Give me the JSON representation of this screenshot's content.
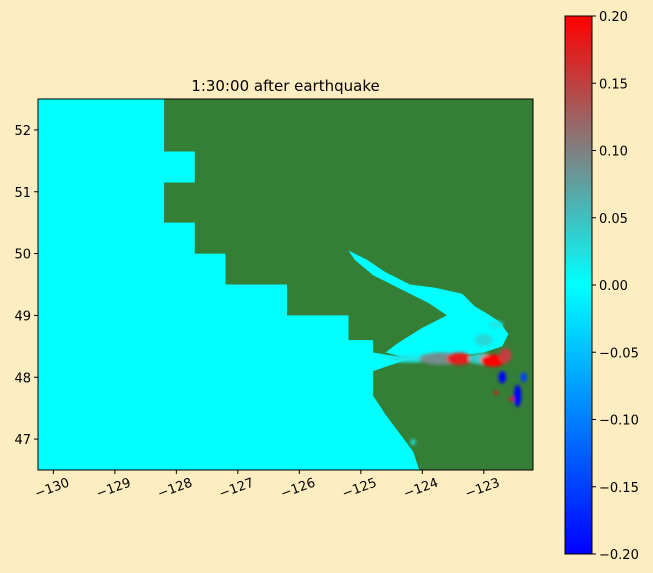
{
  "chart_data": {
    "type": "heatmap",
    "title": "1:30:00 after earthquake",
    "xlim": [
      -130.25,
      -122.2
    ],
    "ylim": [
      46.5,
      52.5
    ],
    "x_ticks": [
      {
        "value": -130,
        "label": "−130"
      },
      {
        "value": -129,
        "label": "−129"
      },
      {
        "value": -128,
        "label": "−128"
      },
      {
        "value": -127,
        "label": "−127"
      },
      {
        "value": -126,
        "label": "−126"
      },
      {
        "value": -125,
        "label": "−125"
      },
      {
        "value": -124,
        "label": "−124"
      },
      {
        "value": -123,
        "label": "−123"
      }
    ],
    "y_ticks": [
      {
        "value": 47,
        "label": "47"
      },
      {
        "value": 48,
        "label": "48"
      },
      {
        "value": 49,
        "label": "49"
      },
      {
        "value": 50,
        "label": "50"
      },
      {
        "value": 51,
        "label": "51"
      },
      {
        "value": 52,
        "label": "52"
      }
    ],
    "colorbar": {
      "min": -0.2,
      "max": 0.2,
      "stops": [
        {
          "value": -0.2,
          "color": "#0000ff"
        },
        {
          "value": 0.0,
          "color": "#00ffff"
        },
        {
          "value": 0.1,
          "color": "#808080"
        },
        {
          "value": 0.2,
          "color": "#ff0000"
        }
      ],
      "ticks": [
        {
          "value": 0.2,
          "label": "0.20"
        },
        {
          "value": 0.15,
          "label": "0.15"
        },
        {
          "value": 0.1,
          "label": "0.10"
        },
        {
          "value": 0.05,
          "label": "0.05"
        },
        {
          "value": 0.0,
          "label": "0.00"
        },
        {
          "value": -0.05,
          "label": "−0.05"
        },
        {
          "value": -0.1,
          "label": "−0.10"
        },
        {
          "value": -0.15,
          "label": "−0.15"
        },
        {
          "value": -0.2,
          "label": "−0.20"
        }
      ]
    },
    "colors": {
      "land": "#357e35",
      "water_zero": "#00ffff",
      "shoreline_vegetation": "#8aa61f",
      "figure_background": "#feedc0"
    },
    "coastline": [
      [
        -128.2,
        52.5
      ],
      [
        -128.2,
        51.65
      ],
      [
        -127.7,
        51.65
      ],
      [
        -127.7,
        51.15
      ],
      [
        -128.2,
        51.15
      ],
      [
        -128.2,
        50.5
      ],
      [
        -127.7,
        50.5
      ],
      [
        -127.7,
        50.0
      ],
      [
        -127.2,
        50.0
      ],
      [
        -127.2,
        49.5
      ],
      [
        -126.2,
        49.5
      ],
      [
        -126.2,
        49.0
      ],
      [
        -125.2,
        49.0
      ],
      [
        -125.2,
        48.6
      ],
      [
        -124.8,
        48.6
      ],
      [
        -124.8,
        48.4
      ],
      [
        -124.5,
        48.35
      ],
      [
        -124.2,
        48.3
      ],
      [
        -124.8,
        48.1
      ],
      [
        -124.8,
        47.7
      ],
      [
        -124.6,
        47.4
      ],
      [
        -124.3,
        47.0
      ],
      [
        -124.15,
        46.8
      ],
      [
        -124.05,
        46.5
      ]
    ],
    "strait_water": [
      [
        -125.2,
        50.05
      ],
      [
        -124.9,
        49.9
      ],
      [
        -124.6,
        49.7
      ],
      [
        -124.2,
        49.5
      ],
      [
        -123.8,
        49.45
      ],
      [
        -123.35,
        49.35
      ],
      [
        -123.15,
        49.15
      ],
      [
        -122.9,
        49.0
      ],
      [
        -122.75,
        48.9
      ],
      [
        -122.6,
        48.7
      ],
      [
        -122.7,
        48.5
      ],
      [
        -123.0,
        48.4
      ],
      [
        -123.4,
        48.35
      ],
      [
        -123.7,
        48.25
      ],
      [
        -124.2,
        48.3
      ],
      [
        -124.6,
        48.4
      ],
      [
        -124.4,
        48.55
      ],
      [
        -124.0,
        48.8
      ],
      [
        -123.6,
        49.0
      ],
      [
        -123.9,
        49.2
      ],
      [
        -124.4,
        49.45
      ],
      [
        -124.8,
        49.65
      ],
      [
        -125.1,
        49.9
      ]
    ],
    "anomalies": [
      {
        "lon": -124.2,
        "lat": 48.3,
        "value": 0.02,
        "rx": 0.35,
        "ry": 0.06
      },
      {
        "lon": -123.7,
        "lat": 48.3,
        "value": 0.09,
        "rx": 0.35,
        "ry": 0.1
      },
      {
        "lon": -123.4,
        "lat": 48.3,
        "value": 0.18,
        "rx": 0.2,
        "ry": 0.1
      },
      {
        "lon": -123.05,
        "lat": 48.3,
        "value": 0.04,
        "rx": 0.2,
        "ry": 0.09
      },
      {
        "lon": -122.85,
        "lat": 48.27,
        "value": 0.2,
        "rx": 0.2,
        "ry": 0.1
      },
      {
        "lon": -122.65,
        "lat": 48.35,
        "value": 0.15,
        "rx": 0.1,
        "ry": 0.12
      },
      {
        "lon": -122.7,
        "lat": 48.0,
        "value": -0.2,
        "rx": 0.06,
        "ry": 0.1
      },
      {
        "lon": -122.45,
        "lat": 47.7,
        "value": -0.2,
        "rx": 0.06,
        "ry": 0.18
      },
      {
        "lon": -122.35,
        "lat": 48.0,
        "value": -0.15,
        "rx": 0.05,
        "ry": 0.08
      },
      {
        "lon": -122.55,
        "lat": 47.65,
        "value": 0.2,
        "rx": 0.04,
        "ry": 0.03
      },
      {
        "lon": -122.8,
        "lat": 47.75,
        "value": 0.2,
        "rx": 0.03,
        "ry": 0.03
      },
      {
        "lon": -123.0,
        "lat": 48.6,
        "value": 0.03,
        "rx": 0.15,
        "ry": 0.1
      },
      {
        "lon": -122.8,
        "lat": 48.85,
        "value": 0.02,
        "rx": 0.12,
        "ry": 0.06
      },
      {
        "lon": -124.15,
        "lat": 46.95,
        "value": 0.02,
        "rx": 0.04,
        "ry": 0.05
      }
    ]
  }
}
